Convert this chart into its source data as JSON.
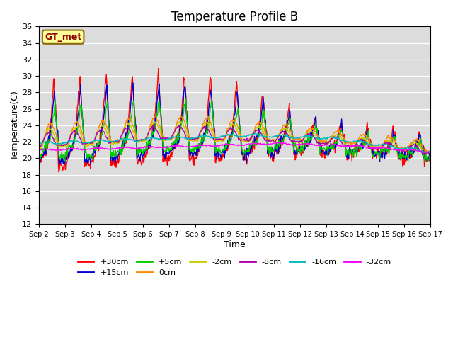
{
  "title": "Temperature Profile B",
  "xlabel": "Time",
  "ylabel": "Temperature(C)",
  "ylim": [
    12,
    36
  ],
  "yticks": [
    12,
    14,
    16,
    18,
    20,
    22,
    24,
    26,
    28,
    30,
    32,
    34,
    36
  ],
  "annotation_text": "GT_met",
  "annotation_color": "#8B0000",
  "annotation_bg": "#FFFF99",
  "annotation_border": "#8B6914",
  "background_color": "#DCDCDC",
  "series_colors": {
    "+30cm": "#FF0000",
    "+15cm": "#0000CC",
    "+5cm": "#00CC00",
    "0cm": "#FF8800",
    "-2cm": "#CCCC00",
    "-8cm": "#AA00AA",
    "-16cm": "#00BBBB",
    "-32cm": "#FF00FF"
  },
  "x_tick_labels": [
    "Sep 2",
    "Sep 3",
    "Sep 4",
    "Sep 5",
    "Sep 6",
    "Sep 7",
    "Sep 8",
    "Sep 9",
    "Sep 10",
    "Sep 11",
    "Sep 12",
    "Sep 13",
    "Sep 14",
    "Sep 15",
    "Sep 16",
    "Sep 17"
  ]
}
